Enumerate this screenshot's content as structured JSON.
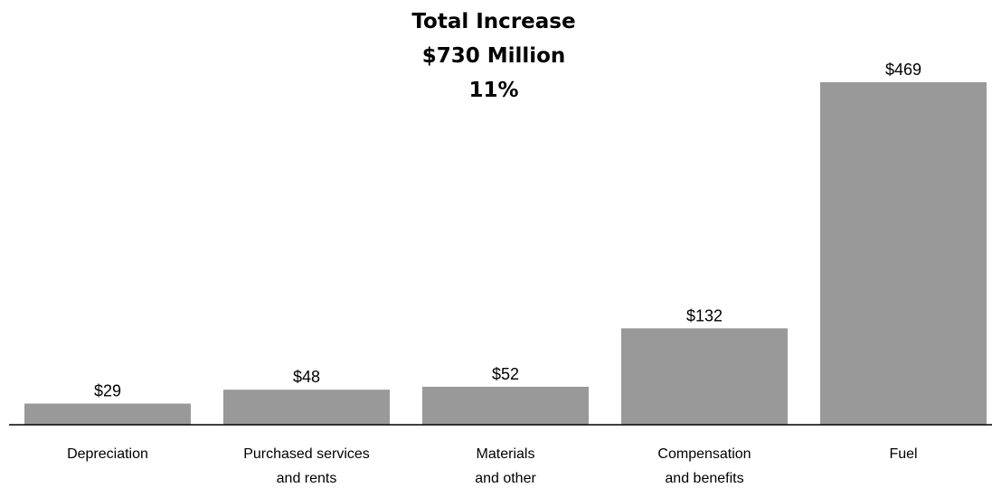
{
  "chart_data": {
    "type": "bar",
    "title": [
      "Total Increase",
      "$730 Million",
      "11%"
    ],
    "categories": [
      [
        "Depreciation"
      ],
      [
        "Purchased services",
        "and rents"
      ],
      [
        "Materials",
        "and other"
      ],
      [
        "Compensation",
        "and benefits"
      ],
      [
        "Fuel"
      ]
    ],
    "values": [
      29,
      48,
      52,
      132,
      469
    ],
    "data_labels": [
      "$29",
      "$48",
      "$52",
      "$132",
      "$469"
    ],
    "ylim": [
      0,
      469
    ],
    "bar_color": "#999999",
    "axis_color": "#000000",
    "grid": false,
    "legend": "none"
  }
}
